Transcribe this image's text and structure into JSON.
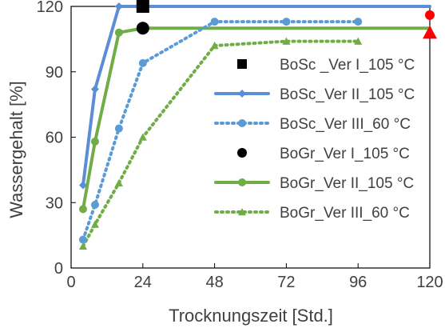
{
  "chart_data": {
    "type": "line",
    "title": "",
    "xlabel": "Trocknungszeit  [Std.]",
    "ylabel": "Wassergehalt [%]",
    "xlim": [
      0,
      120
    ],
    "ylim": [
      0,
      120
    ],
    "xticks": [
      0,
      24,
      48,
      72,
      96,
      120
    ],
    "yticks": [
      0,
      30,
      60,
      90,
      120
    ],
    "grid": false,
    "legend_position": "right-inside",
    "series": [
      {
        "name": "BoSc _Ver I_105 °C",
        "color": "#000000",
        "marker": "square",
        "line": "none",
        "points": [
          [
            24,
            120
          ]
        ]
      },
      {
        "name": "BoSc_Ver II_105 °C",
        "color": "#5b8ed6",
        "marker": "diamond",
        "line": "solid",
        "points": [
          [
            4,
            38
          ],
          [
            8,
            82
          ],
          [
            16,
            120
          ],
          [
            24,
            120
          ],
          [
            120,
            120
          ]
        ]
      },
      {
        "name": "BoSc_Ver III_60 °C",
        "color": "#5b9bd5",
        "marker": "circle",
        "line": "dotted",
        "points": [
          [
            4,
            13
          ],
          [
            8,
            29
          ],
          [
            16,
            64
          ],
          [
            24,
            94
          ],
          [
            48,
            113
          ],
          [
            72,
            113
          ],
          [
            96,
            113
          ]
        ]
      },
      {
        "name": "BoGr_Ver I_105 °C",
        "color": "#000000",
        "marker": "circle",
        "line": "none",
        "points": [
          [
            24,
            110
          ]
        ]
      },
      {
        "name": "BoGr_Ver II_105 °C",
        "color": "#70ad47",
        "marker": "circle",
        "line": "solid",
        "points": [
          [
            4,
            27
          ],
          [
            8,
            58
          ],
          [
            16,
            108
          ],
          [
            24,
            110
          ],
          [
            120,
            110
          ]
        ]
      },
      {
        "name": "BoGr_Ver III_60 °C",
        "color": "#70ad47",
        "marker": "triangle",
        "line": "dotted",
        "points": [
          [
            4,
            10
          ],
          [
            8,
            20
          ],
          [
            16,
            39
          ],
          [
            24,
            60
          ],
          [
            48,
            102
          ],
          [
            72,
            104
          ],
          [
            96,
            104
          ]
        ]
      }
    ],
    "extra_markers": [
      {
        "color": "#ff0000",
        "marker": "circle",
        "x": 120,
        "y": 116
      },
      {
        "color": "#ff0000",
        "marker": "triangle",
        "x": 120,
        "y": 108
      }
    ]
  }
}
